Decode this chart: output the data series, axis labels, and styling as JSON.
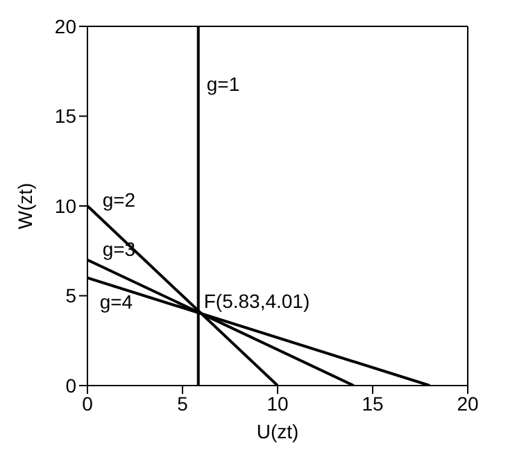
{
  "chart_data": {
    "type": "line",
    "xlabel": "U(zt)",
    "ylabel": "W(zt)",
    "xlim": [
      0,
      20
    ],
    "ylim": [
      0,
      20
    ],
    "xticks": [
      0,
      5,
      10,
      15,
      20
    ],
    "yticks": [
      0,
      5,
      10,
      15,
      20
    ],
    "marker": "none",
    "line_style": "solid",
    "series": [
      {
        "name": "g=1",
        "color": "#000000",
        "x": [
          5.83,
          5.83
        ],
        "values": [
          0,
          20
        ]
      },
      {
        "name": "g=2",
        "color": "#000000",
        "x": [
          0,
          10
        ],
        "values": [
          10,
          0
        ]
      },
      {
        "name": "g=3",
        "color": "#000000",
        "x": [
          0,
          14
        ],
        "values": [
          7,
          0
        ]
      },
      {
        "name": "g=4",
        "color": "#000000",
        "x": [
          0,
          18
        ],
        "values": [
          6,
          0
        ]
      }
    ],
    "annotations": [
      {
        "text": "F(5.83,4.01)",
        "x": 5.83,
        "y": 4.01
      }
    ]
  }
}
